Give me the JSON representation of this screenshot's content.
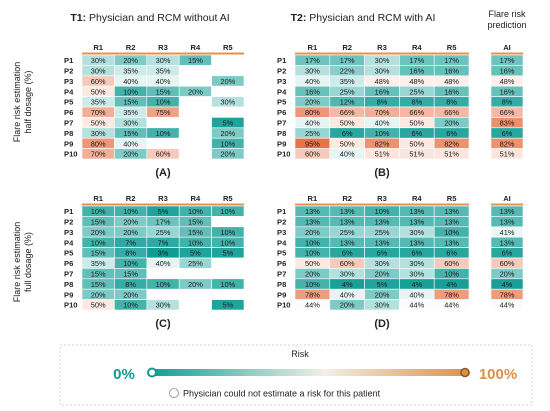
{
  "headers": {
    "t1_prefix": "T1:",
    "t1_title": " Physician and RCM without AI",
    "t2_prefix": "T2:",
    "t2_title": " Physician and RCM with AI",
    "ai_title_line1": "Flare risk",
    "ai_title_line2": "prediction"
  },
  "row_labels": {
    "half_line1": "Flare risk estimation",
    "half_line2": "half dosage (%)",
    "full_line1": "Flare risk estimation",
    "full_line2": "full dosage (%)"
  },
  "legend": {
    "title": "Risk",
    "min_label": "0%",
    "max_label": "100%",
    "na_label": "Physician could not estimate a risk for this patient",
    "colors": {
      "low": "#0e9c94",
      "high": "#e8734a",
      "na": "#ffffff"
    }
  },
  "chart_data": [
    {
      "type": "heatmap",
      "panel_label": "(A)",
      "columns": [
        "R1",
        "R2",
        "R3",
        "R4",
        "R5"
      ],
      "rows": [
        "P1",
        "P2",
        "P3",
        "P4",
        "P5",
        "P6",
        "P7",
        "P8",
        "P9",
        "P10"
      ],
      "values": [
        [
          30,
          20,
          30,
          15,
          null
        ],
        [
          30,
          35,
          35,
          null,
          null
        ],
        [
          60,
          40,
          40,
          null,
          20
        ],
        [
          50,
          10,
          15,
          20,
          null
        ],
        [
          35,
          15,
          10,
          null,
          30
        ],
        [
          70,
          35,
          75,
          null,
          null
        ],
        [
          50,
          30,
          null,
          null,
          5
        ],
        [
          30,
          15,
          10,
          null,
          20
        ],
        [
          80,
          40,
          null,
          null,
          10
        ],
        [
          70,
          20,
          60,
          null,
          20
        ]
      ]
    },
    {
      "type": "heatmap",
      "panel_label": "(B)",
      "columns": [
        "R1",
        "R2",
        "R3",
        "R4",
        "R5"
      ],
      "rows": [
        "P1",
        "P2",
        "P3",
        "P4",
        "P5",
        "P6",
        "P7",
        "P8",
        "P9",
        "P10"
      ],
      "values": [
        [
          17,
          17,
          30,
          17,
          17
        ],
        [
          30,
          22,
          30,
          16,
          16
        ],
        [
          40,
          35,
          48,
          48,
          48
        ],
        [
          16,
          25,
          16,
          25,
          16
        ],
        [
          20,
          12,
          8,
          8,
          8
        ],
        [
          80,
          66,
          70,
          66,
          66
        ],
        [
          40,
          50,
          40,
          50,
          20
        ],
        [
          25,
          6,
          10,
          6,
          6
        ],
        [
          95,
          50,
          82,
          50,
          82
        ],
        [
          60,
          40,
          51,
          51,
          51
        ]
      ]
    },
    {
      "type": "heatmap",
      "panel_label": "",
      "columns": [
        "AI"
      ],
      "rows": [
        "P1",
        "P2",
        "P3",
        "P4",
        "P5",
        "P6",
        "P7",
        "P8",
        "P9",
        "P10"
      ],
      "values": [
        [
          17
        ],
        [
          16
        ],
        [
          48
        ],
        [
          16
        ],
        [
          8
        ],
        [
          66
        ],
        [
          83
        ],
        [
          6
        ],
        [
          82
        ],
        [
          51
        ]
      ]
    },
    {
      "type": "heatmap",
      "panel_label": "(C)",
      "columns": [
        "R1",
        "R2",
        "R3",
        "R4",
        "R5"
      ],
      "rows": [
        "P1",
        "P2",
        "P3",
        "P4",
        "P5",
        "P6",
        "P7",
        "P8",
        "P9",
        "P10"
      ],
      "values": [
        [
          10,
          10,
          5,
          10,
          10
        ],
        [
          15,
          20,
          17,
          15,
          null
        ],
        [
          20,
          20,
          25,
          15,
          10
        ],
        [
          10,
          7,
          7,
          10,
          10
        ],
        [
          15,
          8,
          3,
          5,
          5
        ],
        [
          35,
          10,
          40,
          25,
          null
        ],
        [
          15,
          15,
          null,
          null,
          null
        ],
        [
          15,
          8,
          10,
          20,
          10
        ],
        [
          20,
          20,
          null,
          null,
          null
        ],
        [
          50,
          10,
          30,
          null,
          5
        ]
      ]
    },
    {
      "type": "heatmap",
      "panel_label": "(D)",
      "columns": [
        "R1",
        "R2",
        "R3",
        "R4",
        "R5"
      ],
      "rows": [
        "P1",
        "P2",
        "P3",
        "P4",
        "P5",
        "P6",
        "P7",
        "P8",
        "P9",
        "P10"
      ],
      "values": [
        [
          13,
          13,
          10,
          13,
          13
        ],
        [
          13,
          13,
          13,
          13,
          13
        ],
        [
          20,
          25,
          25,
          30,
          10
        ],
        [
          10,
          13,
          13,
          13,
          13
        ],
        [
          10,
          6,
          6,
          6,
          6
        ],
        [
          50,
          60,
          30,
          30,
          60
        ],
        [
          20,
          30,
          20,
          30,
          10
        ],
        [
          10,
          4,
          5,
          4,
          4
        ],
        [
          78,
          40,
          20,
          40,
          78
        ],
        [
          44,
          20,
          30,
          44,
          44
        ]
      ]
    },
    {
      "type": "heatmap",
      "panel_label": "",
      "columns": [
        "AI"
      ],
      "rows": [
        "P1",
        "P2",
        "P3",
        "P4",
        "P5",
        "P6",
        "P7",
        "P8",
        "P9",
        "P10"
      ],
      "values": [
        [
          13
        ],
        [
          13
        ],
        [
          41
        ],
        [
          13
        ],
        [
          6
        ],
        [
          60
        ],
        [
          20
        ],
        [
          4
        ],
        [
          78
        ],
        [
          44
        ]
      ]
    }
  ]
}
